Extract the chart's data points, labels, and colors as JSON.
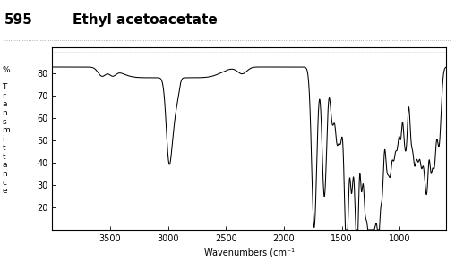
{
  "title_number": "595",
  "title_name": "Ethyl acetoacetate",
  "xlabel": "Wavenumbers (cm⁻¹",
  "xlim": [
    4000,
    600
  ],
  "ylim": [
    10,
    92
  ],
  "yticks": [
    20,
    30,
    40,
    50,
    60,
    70,
    80
  ],
  "xticks": [
    3500,
    3000,
    2500,
    2000,
    1500,
    1000
  ],
  "background_color": "#ffffff",
  "line_color": "#000000",
  "title_color": "#000000",
  "figsize": [
    5.08,
    2.92
  ],
  "dpi": 100,
  "ylabel_stacked": "% Transmittance",
  "title_number_color": "#000000",
  "title_fontsize": 11,
  "tick_labelsize": 7,
  "xlabel_fontsize": 7
}
